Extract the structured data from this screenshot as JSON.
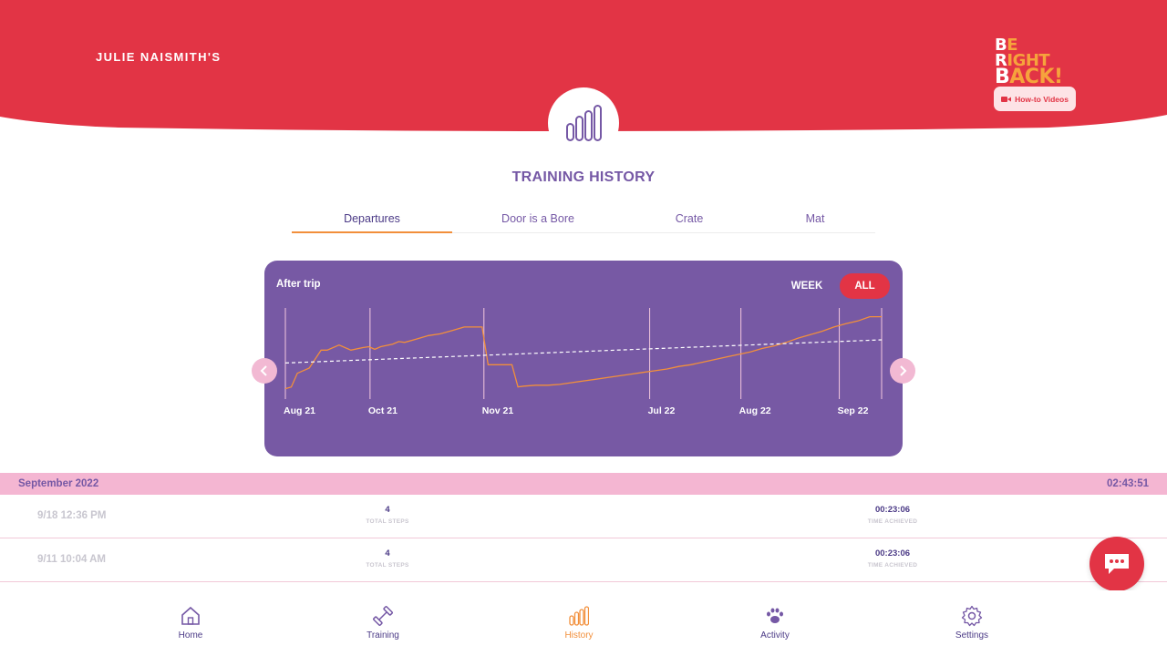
{
  "header": {
    "owner_name": "JULIE NAISMITH'S",
    "logo_line1": [
      "B",
      "E",
      " ",
      "R",
      "IGHT"
    ],
    "logo_line2": [
      "B",
      "ACK!"
    ],
    "howto_label": "How-to Videos",
    "badge_icon": "bar-chart-icon"
  },
  "page": {
    "title": "TRAINING HISTORY"
  },
  "tabs": [
    {
      "label": "Departures",
      "active": true
    },
    {
      "label": "Door is a Bore",
      "active": false
    },
    {
      "label": "Crate",
      "active": false
    },
    {
      "label": "Mat",
      "active": false
    }
  ],
  "chart": {
    "title": "After trip",
    "range_buttons": {
      "week": "WEEK",
      "all": "ALL",
      "selected": "ALL"
    },
    "prev_icon": "chevron-left-icon",
    "next_icon": "chevron-right-icon"
  },
  "chart_data": {
    "type": "line",
    "title": "After trip",
    "tick_labels": [
      "Aug 21",
      "Oct 21",
      "Nov 21",
      "Jul 22",
      "Aug 22",
      "Sep 22"
    ],
    "x_ticks": [
      0,
      14.2,
      33.3,
      61.1,
      76.4,
      92.9
    ],
    "series": [
      {
        "style": "solid",
        "color": "#f28f3b",
        "x": [
          0,
          1,
          2,
          4,
          6,
          7,
          9,
          11,
          13,
          14,
          15,
          16,
          18,
          19,
          20,
          22,
          24,
          26,
          28,
          30,
          31,
          33,
          34,
          35,
          37,
          38,
          39,
          40,
          42,
          44,
          46,
          48,
          50,
          52,
          54,
          56,
          58,
          60,
          62,
          64,
          66,
          68,
          70,
          72,
          74,
          76,
          78,
          80,
          82,
          84,
          86,
          88,
          90,
          92,
          94,
          96,
          98,
          100
        ],
        "y": [
          10,
          12,
          28,
          34,
          55,
          55,
          61,
          55,
          58,
          59,
          56,
          59,
          62,
          65,
          64,
          68,
          72,
          74,
          78,
          82,
          82,
          82,
          38,
          38,
          38,
          38,
          12,
          13,
          14,
          14,
          15,
          17,
          19,
          21,
          23,
          25,
          27,
          29,
          31,
          33,
          36,
          38,
          41,
          44,
          47,
          50,
          53,
          57,
          60,
          64,
          69,
          73,
          77,
          82,
          86,
          89,
          94,
          94
        ]
      },
      {
        "style": "dashed",
        "color": "#ffffff",
        "x": [
          0,
          100
        ],
        "y": [
          40,
          67
        ]
      }
    ]
  },
  "history": {
    "month_label": "September 2022",
    "month_total": "02:43:51",
    "rows": [
      {
        "datetime": "9/18 12:36 PM",
        "steps": "4",
        "steps_label": "TOTAL STEPS",
        "time": "00:23:06",
        "time_label": "TIME ACHIEVED"
      },
      {
        "datetime": "9/11 10:04 AM",
        "steps": "4",
        "steps_label": "TOTAL STEPS",
        "time": "00:23:06",
        "time_label": "TIME ACHIEVED"
      }
    ]
  },
  "chat": {
    "icon": "chat-bubble-icon"
  },
  "nav": [
    {
      "label": "Home",
      "icon": "home-icon",
      "active": false
    },
    {
      "label": "Training",
      "icon": "dumbbell-icon",
      "active": false
    },
    {
      "label": "History",
      "icon": "bar-chart-icon",
      "active": true
    },
    {
      "label": "Activity",
      "icon": "paw-icon",
      "active": false
    },
    {
      "label": "Settings",
      "icon": "gear-icon",
      "active": false
    }
  ],
  "colors": {
    "primary_red": "#e23445",
    "purple": "#7759a4",
    "text_purple": "#4b3a86",
    "orange": "#f28f3b",
    "pink": "#f4b6d2"
  }
}
